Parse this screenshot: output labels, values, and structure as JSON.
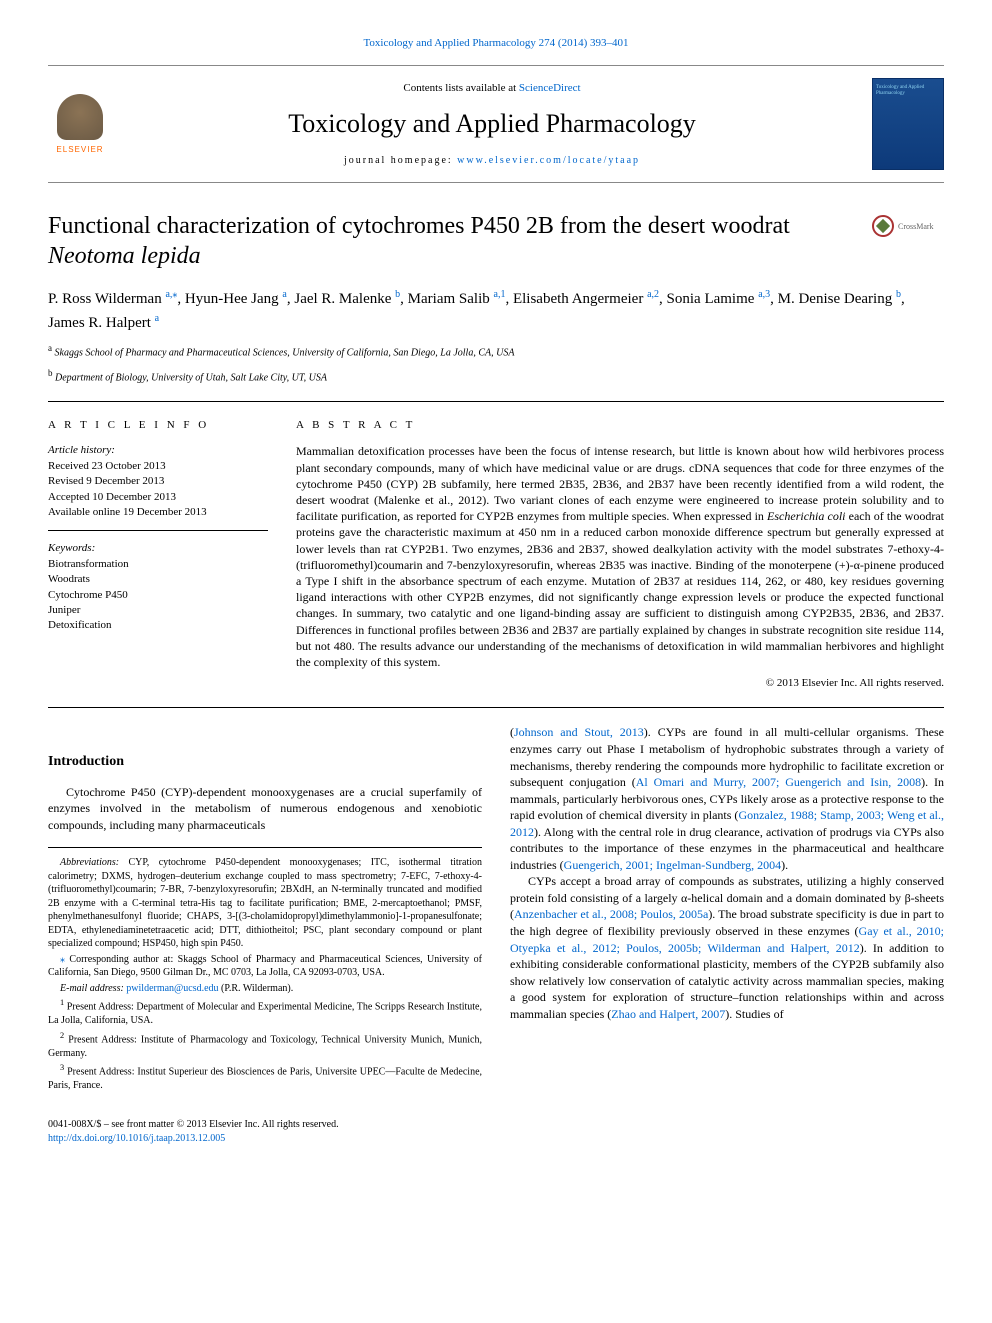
{
  "colors": {
    "link": "#0066cc",
    "text": "#000000",
    "elsevier_orange": "#ff6600",
    "cover_bg_top": "#1a4d8f",
    "cover_bg_bottom": "#0d3a7a",
    "rule": "#000000"
  },
  "header": {
    "citation": "Toxicology and Applied Pharmacology 274 (2014) 393–401",
    "contents_prefix": "Contents lists available at ",
    "contents_link": "ScienceDirect",
    "journal": "Toxicology and Applied Pharmacology",
    "homepage_prefix": "journal homepage: ",
    "homepage_link": "www.elsevier.com/locate/ytaap",
    "elsevier_label": "ELSEVIER",
    "cover_text": "Toxicology and Applied Pharmacology"
  },
  "crossmark": "CrossMark",
  "title_plain": "Functional characterization of cytochromes P450 2B from the desert woodrat ",
  "title_italic": "Neotoma lepida",
  "authors": [
    {
      "name": "P. Ross Wilderman",
      "sup": "a,",
      "star": true
    },
    {
      "name": "Hyun-Hee Jang",
      "sup": "a"
    },
    {
      "name": "Jael R. Malenke",
      "sup": "b"
    },
    {
      "name": "Mariam Salib",
      "sup": "a,1"
    },
    {
      "name": "Elisabeth Angermeier",
      "sup": "a,2"
    },
    {
      "name": "Sonia Lamime",
      "sup": "a,3"
    },
    {
      "name": "M. Denise Dearing",
      "sup": "b"
    },
    {
      "name": "James R. Halpert",
      "sup": "a"
    }
  ],
  "affiliations": [
    {
      "sup": "a",
      "text": "Skaggs School of Pharmacy and Pharmaceutical Sciences, University of California, San Diego, La Jolla, CA, USA"
    },
    {
      "sup": "b",
      "text": "Department of Biology, University of Utah, Salt Lake City, UT, USA"
    }
  ],
  "article_info": {
    "heading": "A R T I C L E   I N F O",
    "history_label": "Article history:",
    "history": [
      "Received 23 October 2013",
      "Revised 9 December 2013",
      "Accepted 10 December 2013",
      "Available online 19 December 2013"
    ],
    "keywords_label": "Keywords:",
    "keywords": [
      "Biotransformation",
      "Woodrats",
      "Cytochrome P450",
      "Juniper",
      "Detoxification"
    ]
  },
  "abstract": {
    "heading": "A B S T R A C T",
    "text_parts": [
      "Mammalian detoxification processes have been the focus of intense research, but little is known about how wild herbivores process plant secondary compounds, many of which have medicinal value or are drugs. cDNA sequences that code for three enzymes of the cytochrome P450 (CYP) 2B subfamily, here termed 2B35, 2B36, and 2B37 have been recently identified from a wild rodent, the desert woodrat (Malenke et al., 2012). Two variant clones of each enzyme were engineered to increase protein solubility and to facilitate purification, as reported for CYP2B enzymes from multiple species. When expressed in ",
      "Escherichia coli",
      " each of the woodrat proteins gave the characteristic maximum at 450 nm in a reduced carbon monoxide difference spectrum but generally expressed at lower levels than rat CYP2B1. Two enzymes, 2B36 and 2B37, showed dealkylation activity with the model substrates 7-ethoxy-4-(trifluoromethyl)coumarin and 7-benzyloxyresorufin, whereas 2B35 was inactive. Binding of the monoterpene (+)-α-pinene produced a Type I shift in the absorbance spectrum of each enzyme. Mutation of 2B37 at residues 114, 262, or 480, key residues governing ligand interactions with other CYP2B enzymes, did not significantly change expression levels or produce the expected functional changes. In summary, two catalytic and one ligand-binding assay are sufficient to distinguish among CYP2B35, 2B36, and 2B37. Differences in functional profiles between 2B36 and 2B37 are partially explained by changes in substrate recognition site residue 114, but not 480. The results advance our understanding of the mechanisms of detoxification in wild mammalian herbivores and highlight the complexity of this system."
    ],
    "copyright": "© 2013 Elsevier Inc. All rights reserved."
  },
  "intro_heading": "Introduction",
  "intro_left": "Cytochrome P450 (CYP)-dependent monooxygenases are a crucial superfamily of enzymes involved in the metabolism of numerous endogenous and xenobiotic compounds, including many pharmaceuticals",
  "intro_right_parts": [
    {
      "type": "text",
      "val": "("
    },
    {
      "type": "link",
      "val": "Johnson and Stout, 2013"
    },
    {
      "type": "text",
      "val": "). CYPs are found in all multi-cellular organisms. These enzymes carry out Phase I metabolism of hydrophobic substrates through a variety of mechanisms, thereby rendering the compounds more hydrophilic to facilitate excretion or subsequent conjugation ("
    },
    {
      "type": "link",
      "val": "Al Omari and Murry, 2007; Guengerich and Isin, 2008"
    },
    {
      "type": "text",
      "val": "). In mammals, particularly herbivorous ones, CYPs likely arose as a protective response to the rapid evolution of chemical diversity in plants ("
    },
    {
      "type": "link",
      "val": "Gonzalez, 1988; Stamp, 2003; Weng et al., 2012"
    },
    {
      "type": "text",
      "val": "). Along with the central role in drug clearance, activation of prodrugs via CYPs also contributes to the importance of these enzymes in the pharmaceutical and healthcare industries ("
    },
    {
      "type": "link",
      "val": "Guengerich, 2001; Ingelman-Sundberg, 2004"
    },
    {
      "type": "text",
      "val": ")."
    }
  ],
  "intro_right_p2_parts": [
    {
      "type": "text",
      "val": "CYPs accept a broad array of compounds as substrates, utilizing a highly conserved protein fold consisting of a largely α-helical domain and a domain dominated by β-sheets ("
    },
    {
      "type": "link",
      "val": "Anzenbacher et al., 2008; Poulos, 2005a"
    },
    {
      "type": "text",
      "val": "). The broad substrate specificity is due in part to the high degree of flexibility previously observed in these enzymes ("
    },
    {
      "type": "link",
      "val": "Gay et al., 2010; Otyepka et al., 2012; Poulos, 2005b; Wilderman and Halpert, 2012"
    },
    {
      "type": "text",
      "val": "). In addition to exhibiting considerable conformational plasticity, members of the CYP2B subfamily also show relatively low conservation of catalytic activity across mammalian species, making a good system for exploration of structure–function relationships within and across mammalian species ("
    },
    {
      "type": "link",
      "val": "Zhao and Halpert, 2007"
    },
    {
      "type": "text",
      "val": "). Studies of"
    }
  ],
  "footnotes": {
    "abbrev_label": "Abbreviations:",
    "abbrev": " CYP, cytochrome P450-dependent monooxygenases; ITC, isothermal titration calorimetry; DXMS, hydrogen–deuterium exchange coupled to mass spectrometry; 7-EFC, 7-ethoxy-4-(trifluoromethyl)coumarin; 7-BR, 7-benzyloxyresorufin; 2BXdH, an N-terminally truncated and modified 2B enzyme with a C-terminal tetra-His tag to facilitate purification; BME, 2-mercaptoethanol; PMSF, phenylmethanesulfonyl fluoride; CHAPS, 3-[(3-cholamidopropyl)dimethylammonio]-1-propanesulfonate; EDTA, ethylenediaminetetraacetic acid; DTT, dithiotheitol; PSC, plant secondary compound or plant specialized compound; HSP450, high spin P450.",
    "corresp": "Corresponding author at: Skaggs School of Pharmacy and Pharmaceutical Sciences, University of California, San Diego, 9500 Gilman Dr., MC 0703, La Jolla, CA 92093-0703, USA.",
    "email_label": "E-mail address:",
    "email": "pwilderman@ucsd.edu",
    "email_paren": "(P.R. Wilderman).",
    "addr1": "Present Address: Department of Molecular and Experimental Medicine, The Scripps Research Institute, La Jolla, California, USA.",
    "addr2": "Present Address: Institute of Pharmacology and Toxicology, Technical University Munich, Munich, Germany.",
    "addr3": "Present Address: Institut Superieur des Biosciences de Paris, Universite UPEC—Faculte de Medecine, Paris, France."
  },
  "footer": {
    "left": "0041-008X/$ – see front matter © 2013 Elsevier Inc. All rights reserved.",
    "doi": "http://dx.doi.org/10.1016/j.taap.2013.12.005"
  }
}
